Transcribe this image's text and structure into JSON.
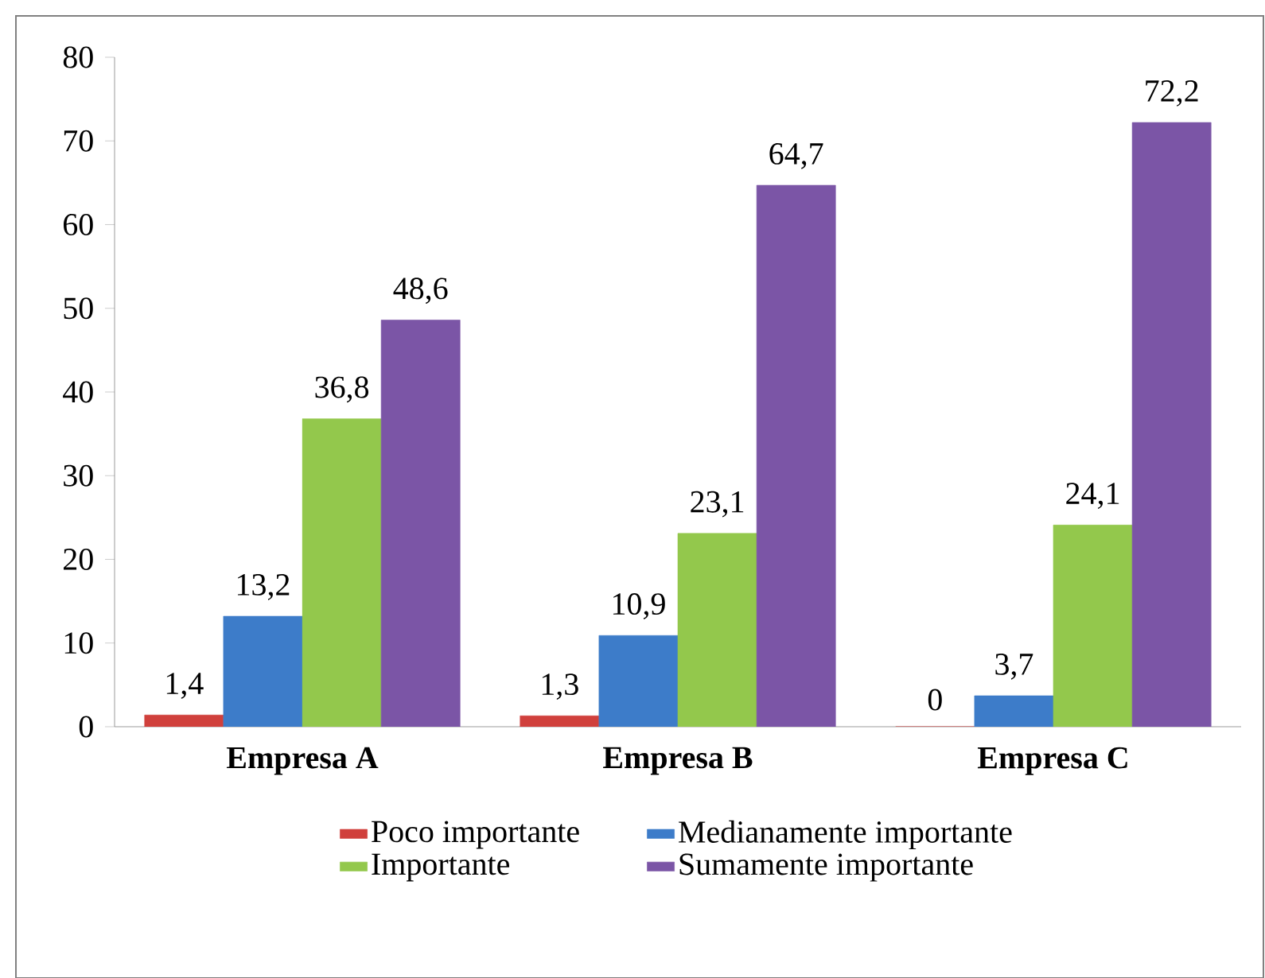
{
  "chart_data": {
    "type": "bar",
    "categories": [
      "**Empresa A**",
      "**Empresa B**",
      "**Empresa C**"
    ],
    "series": [
      {
        "name": "Poco importante",
        "color": "#d0403c",
        "values": [
          1.4,
          1.3,
          0
        ],
        "value_labels": [
          "1,4",
          "1,3",
          "0"
        ]
      },
      {
        "name": "Medianamente importante",
        "color": "#3d7cc9",
        "values": [
          13.2,
          10.9,
          3.7
        ],
        "value_labels": [
          "13,2",
          "10,9",
          "3,7"
        ]
      },
      {
        "name": "Importante",
        "color": "#93c84c",
        "values": [
          36.8,
          23.1,
          24.1
        ],
        "value_labels": [
          "36,8",
          "23,1",
          "24,1"
        ]
      },
      {
        "name": "Sumamente importante",
        "color": "#7b55a6",
        "values": [
          48.6,
          64.7,
          72.2
        ],
        "value_labels": [
          "48,6",
          "64,7",
          "72,2"
        ]
      }
    ],
    "ylim": [
      0,
      80
    ],
    "yticks": [
      0,
      10,
      20,
      30,
      40,
      50,
      60,
      70,
      80
    ],
    "grid": false,
    "legend": "bottom"
  }
}
